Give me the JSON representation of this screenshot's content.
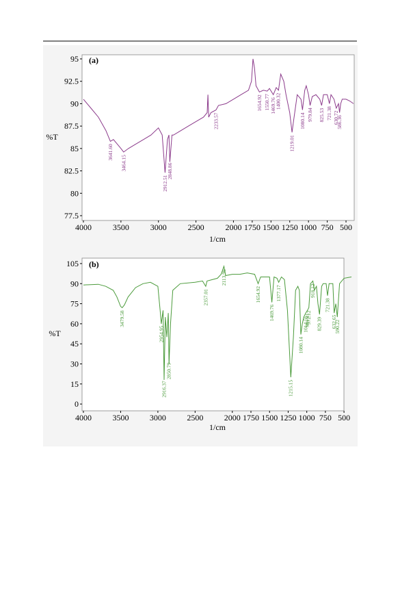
{
  "chart_data": [
    {
      "type": "line",
      "title": "(a)",
      "x_label": "1/cm",
      "y_label": "%T",
      "color": "#8b3a8b",
      "xlim": [
        4000,
        400
      ],
      "ylim": [
        77.5,
        95
      ],
      "xticks": [
        4000,
        3500,
        3000,
        2500,
        2000,
        1750,
        1500,
        1250,
        1000,
        750,
        500
      ],
      "yticks": [
        77.5,
        80,
        82.5,
        85,
        87.5,
        90,
        92.5,
        95
      ],
      "x": [
        4000,
        3900,
        3800,
        3700,
        3641,
        3600,
        3550,
        3500,
        3464,
        3400,
        3300,
        3200,
        3100,
        3000,
        2950,
        2912,
        2880,
        2860,
        2848,
        2820,
        2800,
        2700,
        2600,
        2500,
        2400,
        2350,
        2340,
        2330,
        2300,
        2233,
        2200,
        2100,
        2000,
        1900,
        1800,
        1760,
        1740,
        1720,
        1700,
        1654,
        1600,
        1550,
        1520,
        1469,
        1430,
        1400,
        1370,
        1330,
        1300,
        1250,
        1219,
        1200,
        1150,
        1100,
        1080,
        1050,
        1030,
        1000,
        979,
        950,
        900,
        850,
        825,
        800,
        750,
        721,
        700,
        660,
        630,
        600,
        586,
        570,
        550,
        500,
        450,
        400
      ],
      "values": [
        90.5,
        89.5,
        88.5,
        87,
        85.8,
        86,
        85.5,
        85,
        84.6,
        85,
        85.5,
        86,
        86.5,
        87.3,
        86.5,
        82.3,
        86,
        86.5,
        83.5,
        86.5,
        86.5,
        87,
        87.5,
        88,
        88.5,
        89,
        91,
        88.5,
        89,
        89.3,
        89.8,
        90,
        90.5,
        91,
        91.5,
        92.5,
        95,
        94,
        92,
        91.3,
        91.5,
        91.4,
        91.7,
        91,
        91.8,
        91.5,
        93.3,
        92.5,
        91,
        89,
        86.8,
        88,
        91,
        90.5,
        89.3,
        91.5,
        92,
        91,
        89.8,
        90.8,
        91,
        90.5,
        89.8,
        91,
        91,
        90,
        91,
        90.5,
        89.5,
        90,
        89,
        90,
        90.5,
        90.5,
        90.3,
        90
      ],
      "annotations": [
        "3641.60",
        "3464.15",
        "2912.51",
        "2848.86",
        "2233.57",
        "1654.92",
        "1550.77",
        "1469.76",
        "1400.32",
        "1219.01",
        "1080.14",
        "979.84",
        "825.53",
        "721.38",
        "630.72",
        "586.36"
      ]
    },
    {
      "type": "line",
      "title": "(b)",
      "x_label": "1/cm",
      "y_label": "%T",
      "color": "#4a9a3a",
      "xlim": [
        4000,
        400
      ],
      "ylim": [
        -2,
        106
      ],
      "xticks": [
        4000,
        3500,
        3000,
        2500,
        2000,
        1750,
        1500,
        1250,
        1000,
        750,
        500
      ],
      "yticks": [
        0,
        15,
        30,
        45,
        60,
        75,
        90,
        105
      ],
      "x": [
        4000,
        3800,
        3700,
        3600,
        3550,
        3500,
        3479,
        3450,
        3400,
        3300,
        3200,
        3100,
        3000,
        2970,
        2954,
        2930,
        2916,
        2900,
        2880,
        2860,
        2850,
        2830,
        2800,
        2700,
        2500,
        2400,
        2357,
        2340,
        2200,
        2150,
        2113,
        2090,
        2000,
        1900,
        1800,
        1700,
        1654,
        1620,
        1500,
        1469,
        1440,
        1400,
        1377,
        1340,
        1300,
        1260,
        1215,
        1180,
        1150,
        1120,
        1100,
        1080,
        1060,
        1040,
        1014,
        991,
        972,
        950,
        918,
        900,
        870,
        850,
        829,
        800,
        780,
        740,
        721,
        700,
        650,
        632,
        610,
        590,
        560,
        500,
        400
      ],
      "values": [
        89,
        89.5,
        88,
        85,
        80,
        73,
        72,
        74,
        80,
        87,
        90,
        91,
        88,
        70,
        60,
        70,
        18,
        65,
        50,
        68,
        30,
        60,
        85,
        90,
        91,
        92,
        88,
        92,
        94,
        97,
        103,
        96,
        97,
        97,
        98,
        97,
        90,
        95,
        95,
        76,
        95,
        94,
        91,
        95,
        93,
        70,
        20,
        50,
        85,
        88,
        85,
        52,
        60,
        65,
        68,
        70,
        72,
        90,
        92,
        85,
        88,
        75,
        67,
        88,
        90,
        90,
        81,
        90,
        90,
        68,
        75,
        65,
        90,
        94,
        95
      ],
      "annotations": [
        "3479.58",
        "2954.95",
        "2916.37",
        "2850.79",
        "2357.01",
        "2113.98",
        "1654.92",
        "1469.76",
        "1377.17",
        "1215.15",
        "1080.14",
        "1014.56",
        "991.41",
        "972.12",
        "918.12",
        "829.39",
        "721.38",
        "632.65",
        "590.22"
      ]
    }
  ]
}
